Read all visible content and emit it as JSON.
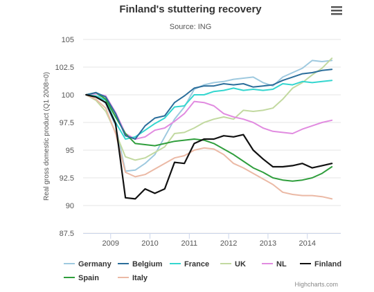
{
  "chart_data": {
    "type": "line",
    "title": "Finland's stuttering recovery",
    "subtitle": "Source: ING",
    "xlabel": "",
    "ylabel": "Real gross domestic product (Q1 2008=0)",
    "ylim": [
      87.5,
      105
    ],
    "yticks": [
      "87.5",
      "90",
      "92.5",
      "95",
      "97.5",
      "100",
      "102.5",
      "105"
    ],
    "xlim": [
      2008.3,
      2014.85
    ],
    "xticks": [
      "2009",
      "2010",
      "2011",
      "2012",
      "2013",
      "2014"
    ],
    "grid": "horizontal",
    "legend_position": "bottom",
    "credits": "Highcharts.com",
    "x": [
      2008.375,
      2008.625,
      2008.875,
      2009.125,
      2009.375,
      2009.625,
      2009.875,
      2010.125,
      2010.375,
      2010.625,
      2010.875,
      2011.125,
      2011.375,
      2011.625,
      2011.875,
      2012.125,
      2012.375,
      2012.625,
      2012.875,
      2013.125,
      2013.375,
      2013.625,
      2013.875,
      2014.125,
      2014.375,
      2014.625
    ],
    "series": [
      {
        "name": "Germany",
        "color": "#9ec9df",
        "values": [
          100,
          100.2,
          99.2,
          97.2,
          93.1,
          93.2,
          93.8,
          94.6,
          96.2,
          97.8,
          98.9,
          100.5,
          100.9,
          101.1,
          101.2,
          101.4,
          101.5,
          101.6,
          101.1,
          100.8,
          101.6,
          102.0,
          102.4,
          103.1,
          103.0,
          103.1
        ]
      },
      {
        "name": "Belgium",
        "color": "#2a6d9a",
        "values": [
          100,
          100.2,
          99.8,
          98.3,
          96.3,
          96.0,
          97.2,
          97.9,
          98.1,
          99.3,
          99.9,
          100.6,
          100.8,
          100.8,
          101.0,
          100.9,
          101.0,
          100.7,
          100.8,
          100.9,
          101.3,
          101.6,
          101.9,
          102.0,
          102.2,
          102.3
        ]
      },
      {
        "name": "France",
        "color": "#33d6cf",
        "values": [
          100,
          99.9,
          99.5,
          97.5,
          96.0,
          96.2,
          96.8,
          97.4,
          97.9,
          98.9,
          99.0,
          100.0,
          100.0,
          100.3,
          100.4,
          100.6,
          100.4,
          100.5,
          100.4,
          100.5,
          101.0,
          100.9,
          101.2,
          101.1,
          101.2,
          101.3
        ]
      },
      {
        "name": "UK",
        "color": "#c2d9a0",
        "values": [
          100,
          99.5,
          98.5,
          96.6,
          94.4,
          94.1,
          94.3,
          94.8,
          95.3,
          96.5,
          96.6,
          97.0,
          97.5,
          97.8,
          98.0,
          97.8,
          98.6,
          98.5,
          98.6,
          98.8,
          99.6,
          100.6,
          101.1,
          101.8,
          102.4,
          103.3
        ]
      },
      {
        "name": "NL",
        "color": "#e18be0",
        "values": [
          100,
          100.1,
          99.9,
          98.4,
          96.5,
          96.0,
          96.2,
          96.8,
          97.0,
          97.6,
          98.3,
          99.4,
          99.3,
          99.0,
          98.3,
          98.0,
          97.8,
          97.5,
          97.0,
          96.7,
          96.6,
          96.5,
          96.9,
          97.2,
          97.5,
          97.7
        ]
      },
      {
        "name": "Finland",
        "color": "#111111",
        "values": [
          100,
          99.8,
          99.3,
          97.4,
          90.7,
          90.6,
          91.5,
          91.1,
          91.5,
          93.9,
          93.8,
          95.6,
          96.0,
          96.0,
          96.3,
          96.2,
          96.4,
          95.0,
          94.2,
          93.5,
          93.5,
          93.6,
          93.8,
          93.4,
          93.6,
          93.8
        ]
      },
      {
        "name": "Spain",
        "color": "#2f9e3c",
        "values": [
          100,
          100.2,
          99.6,
          98.0,
          96.5,
          95.6,
          95.5,
          95.4,
          95.6,
          95.8,
          95.9,
          96.0,
          95.9,
          95.6,
          95.1,
          94.6,
          94.0,
          93.4,
          93.0,
          92.5,
          92.3,
          92.2,
          92.3,
          92.5,
          92.9,
          93.5
        ]
      },
      {
        "name": "Italy",
        "color": "#ebb9a5",
        "values": [
          100,
          99.6,
          98.8,
          96.5,
          93.0,
          92.6,
          92.8,
          93.3,
          93.8,
          94.3,
          94.5,
          95.0,
          95.2,
          95.1,
          94.6,
          93.8,
          93.4,
          92.9,
          92.4,
          91.9,
          91.2,
          91.0,
          90.9,
          90.9,
          90.8,
          90.6
        ]
      }
    ]
  }
}
